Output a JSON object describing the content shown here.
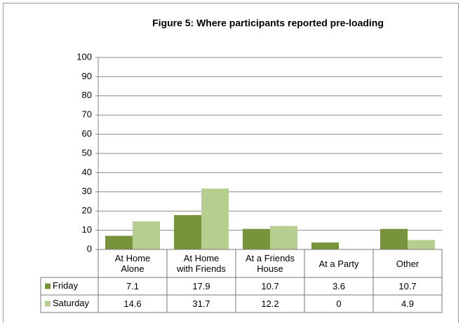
{
  "chart_data": {
    "type": "bar",
    "title": "Figure 5: Where participants reported pre-loading",
    "categories": [
      "At Home Alone",
      "At Home with Friends",
      "At a Friends House",
      "At a Party",
      "Other"
    ],
    "series": [
      {
        "name": "Friday",
        "color": "#77933c",
        "values": [
          7.1,
          17.9,
          10.7,
          3.6,
          10.7
        ]
      },
      {
        "name": "Saturday",
        "color": "#b5cf8f",
        "values": [
          14.6,
          31.7,
          12.2,
          0,
          4.9
        ]
      }
    ],
    "ylim": [
      0,
      100
    ],
    "yticks": [
      0,
      10,
      20,
      30,
      40,
      50,
      60,
      70,
      80,
      90,
      100
    ],
    "grid": true,
    "legend": "data-table"
  }
}
